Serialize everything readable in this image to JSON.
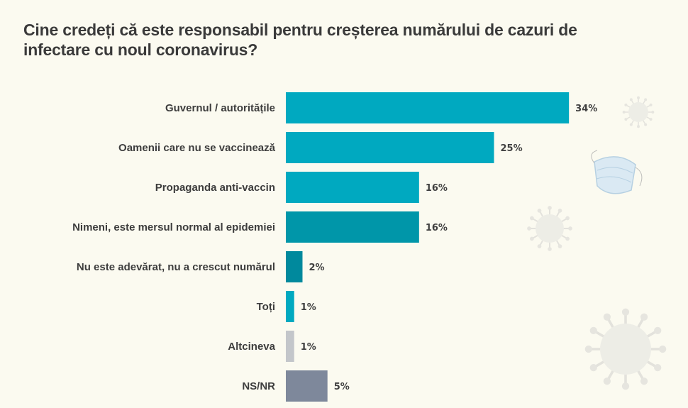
{
  "chart_data": {
    "type": "bar",
    "orientation": "horizontal",
    "title": "Cine credeți că este responsabil pentru creșterea numărului de cazuri de infectare cu noul coronavirus?",
    "categories": [
      "Guvernul / autoritățile",
      "Oamenii care nu se vaccinează",
      "Propaganda anti-vaccin",
      "Nimeni, este mersul normal al epidemiei",
      "Nu este adevărat, nu a crescut numărul",
      "Toți",
      "Altcineva",
      "NS/NR"
    ],
    "values": [
      34,
      25,
      16,
      16,
      2,
      1,
      1,
      5
    ],
    "data_labels": [
      "34%",
      "25%",
      "16%",
      "16%",
      "2%",
      "1%",
      "1%",
      "5%"
    ],
    "colors": [
      "#00a9c0",
      "#00a9c0",
      "#00a9c0",
      "#0096a9",
      "#00899d",
      "#00a9c0",
      "#c3c6ca",
      "#7e889b"
    ],
    "unit": "%",
    "grid": false,
    "legend": "none"
  },
  "decorations": [
    "face-mask-icon",
    "virus-icon"
  ]
}
